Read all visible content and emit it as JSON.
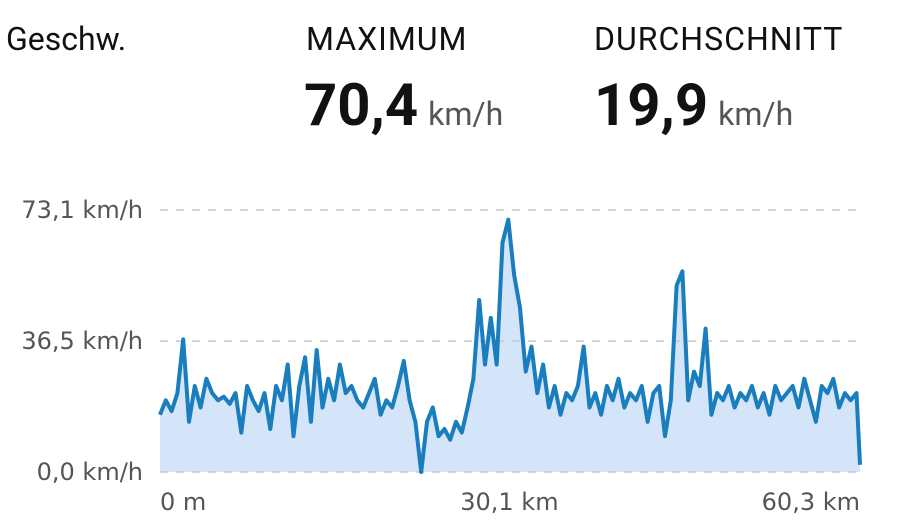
{
  "header": {
    "title": "Geschw.",
    "stats": [
      {
        "label": "MAXIMUM",
        "value": "70,4",
        "unit": "km/h"
      },
      {
        "label": "DURCHSCHNITT",
        "value": "19,9",
        "unit": "km/h"
      }
    ]
  },
  "chart_data": {
    "type": "area",
    "color": "#1a7dbd",
    "fill_color": "#d4e5fa",
    "grid": true,
    "xlim": [
      0,
      60.3
    ],
    "ylim": [
      0,
      73.1
    ],
    "xticks": [
      {
        "value": 0,
        "label": "0 m"
      },
      {
        "value": 30.1,
        "label": "30,1 km"
      },
      {
        "value": 60.3,
        "label": "60,3 km"
      }
    ],
    "yticks": [
      {
        "value": 0,
        "label": "0,0 km/h"
      },
      {
        "value": 36.5,
        "label": "36,5 km/h"
      },
      {
        "value": 73.1,
        "label": "73,1 km/h"
      }
    ],
    "x": [
      0,
      0.5,
      1,
      1.5,
      2,
      2.5,
      3,
      3.5,
      4,
      4.5,
      5,
      5.5,
      6,
      6.5,
      7,
      7.5,
      8,
      8.5,
      9,
      9.5,
      10,
      10.5,
      11,
      11.5,
      12,
      12.5,
      13,
      13.5,
      14,
      14.5,
      15,
      15.5,
      16,
      16.5,
      17,
      17.5,
      18,
      18.5,
      19,
      19.5,
      20,
      20.5,
      21,
      21.5,
      22,
      22.5,
      23,
      23.5,
      24,
      24.5,
      25,
      25.5,
      26,
      26.5,
      27,
      27.5,
      28,
      28.5,
      29,
      29.5,
      30,
      30.5,
      31,
      31.5,
      32,
      32.5,
      33,
      33.5,
      34,
      34.5,
      35,
      35.5,
      36,
      36.5,
      37,
      37.5,
      38,
      38.5,
      39,
      39.5,
      40,
      40.5,
      41,
      41.5,
      42,
      42.5,
      43,
      43.5,
      44,
      44.5,
      45,
      45.5,
      46,
      46.5,
      47,
      47.5,
      48,
      48.5,
      49,
      49.5,
      50,
      50.5,
      51,
      51.5,
      52,
      52.5,
      53,
      53.5,
      54,
      54.5,
      55,
      55.5,
      56,
      56.5,
      57,
      57.5,
      58,
      58.5,
      59,
      59.5,
      60,
      60.3
    ],
    "values": [
      16,
      20,
      17,
      22,
      37,
      14,
      24,
      18,
      26,
      22,
      20,
      21,
      19,
      22,
      11,
      24,
      20,
      17,
      22,
      12,
      24,
      20,
      30,
      10,
      24,
      32,
      14,
      34,
      18,
      26,
      20,
      30,
      22,
      24,
      20,
      18,
      22,
      26,
      16,
      20,
      18,
      24,
      31,
      20,
      14,
      0,
      14,
      18,
      10,
      12,
      9,
      14,
      11,
      18,
      26,
      48,
      30,
      43,
      30,
      64,
      70.4,
      55,
      46,
      28,
      35,
      22,
      30,
      18,
      24,
      16,
      22,
      20,
      24,
      35,
      18,
      22,
      16,
      24,
      20,
      26,
      18,
      22,
      20,
      24,
      14,
      22,
      24,
      10,
      20,
      52,
      56,
      20,
      28,
      24,
      40,
      16,
      22,
      20,
      24,
      18,
      22,
      20,
      24,
      18,
      22,
      16,
      24,
      20,
      22,
      24,
      18,
      26,
      20,
      14,
      24,
      22,
      26,
      18,
      22,
      20,
      22,
      2
    ]
  }
}
